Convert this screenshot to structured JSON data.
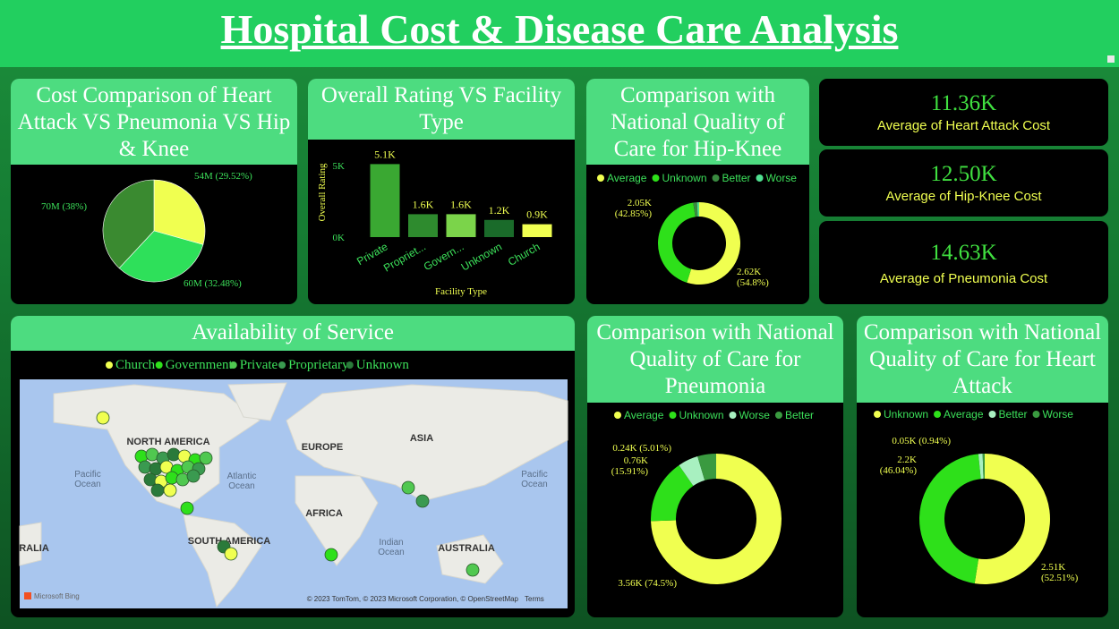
{
  "title": "Hospital Cost & Disease Care Analysis",
  "chart_data": [
    {
      "type": "pie",
      "title": "Cost Comparison of Heart Attack VS Pneumonia VS Hip & Knee",
      "values": [
        54000000,
        60000000,
        70000000
      ],
      "value_labels": [
        "54M (29.52%)",
        "60M (32.48%)",
        "70M (38%)"
      ],
      "colors": [
        "#f0ff50",
        "#2ee05a",
        "#3a8a30"
      ]
    },
    {
      "type": "bar",
      "title": "Overall Rating VS Facility Type",
      "y_label": "Overall Rating",
      "x_label": "Facility Type",
      "categories": [
        "Private",
        "Propriet...",
        "Govern...",
        "Unknown",
        "Church"
      ],
      "values": [
        5100,
        1600,
        1600,
        1200,
        900
      ],
      "value_labels": [
        "5.1K",
        "1.6K",
        "1.6K",
        "1.2K",
        "0.9K"
      ],
      "colors": [
        "#3aa832",
        "#2e8b2e",
        "#7bd44a",
        "#1a6b2a",
        "#f0ff50"
      ],
      "ylim": [
        0,
        6000
      ],
      "yticks": [
        {
          "value": 0,
          "label": "0K"
        },
        {
          "value": 5000,
          "label": "5K"
        }
      ]
    },
    {
      "type": "donut",
      "title": "Comparison with National Quality of Care for Hip-Knee",
      "categories": [
        "Average",
        "Unknown",
        "Better",
        "Worse"
      ],
      "values": [
        2620,
        2050,
        70,
        40
      ],
      "value_labels": [
        "2.62K (54.8%)",
        "2.05K (42.85%)",
        null,
        null
      ],
      "colors": [
        "#f0ff50",
        "#2ee01a",
        "#3a8a40",
        "#50e090"
      ]
    },
    {
      "type": "donut",
      "title": "Comparison with National Quality of Care for Pneumonia",
      "categories": [
        "Average",
        "Unknown",
        "Worse",
        "Better"
      ],
      "values": [
        3560,
        760,
        240,
        220
      ],
      "value_labels": [
        "3.56K (74.5%)",
        "0.76K (15.91%)",
        "0.24K (5.01%)",
        null
      ],
      "colors": [
        "#f0ff50",
        "#2ee01a",
        "#a8f0c0",
        "#3a9a40"
      ]
    },
    {
      "type": "donut",
      "title": "Comparison with National Quality of Care for Heart Attack",
      "categories": [
        "Unknown",
        "Average",
        "Better",
        "Worse"
      ],
      "values": [
        2510,
        2200,
        50,
        24
      ],
      "value_labels": [
        "2.51K (52.51%)",
        "2.2K (46.04%)",
        "0.05K (0.94%)",
        null
      ],
      "colors": [
        "#f0ff50",
        "#2ee01a",
        "#a8f0c0",
        "#3a9a40"
      ]
    }
  ],
  "kpis": [
    {
      "value": "11.36K",
      "label": "Average of Heart Attack Cost"
    },
    {
      "value": "12.50K",
      "label": "Average of Hip-Knee Cost"
    },
    {
      "value": "14.63K",
      "label": "Average of Pneumonia Cost"
    }
  ],
  "map": {
    "title": "Availability of Service",
    "legend": [
      {
        "name": "Church",
        "color": "#f0ff50"
      },
      {
        "name": "Government",
        "color": "#2ee01a"
      },
      {
        "name": "Private",
        "color": "#50c850"
      },
      {
        "name": "Proprietary",
        "color": "#3a9a50"
      },
      {
        "name": "Unknown",
        "color": "#2a7a3a"
      }
    ],
    "labels": [
      "NORTH AMERICA",
      "EUROPE",
      "ASIA",
      "Pacific Ocean",
      "Atlantic Ocean",
      "AFRICA",
      "SOUTH AMERICA",
      "Indian Ocean",
      "AUSTRALIA",
      "RALIA",
      "Pacific Ocean"
    ],
    "provider": "Microsoft Bing",
    "attribution": "© 2023 TomTom, © 2023 Microsoft Corporation, © OpenStreetMap",
    "terms": "Terms"
  }
}
